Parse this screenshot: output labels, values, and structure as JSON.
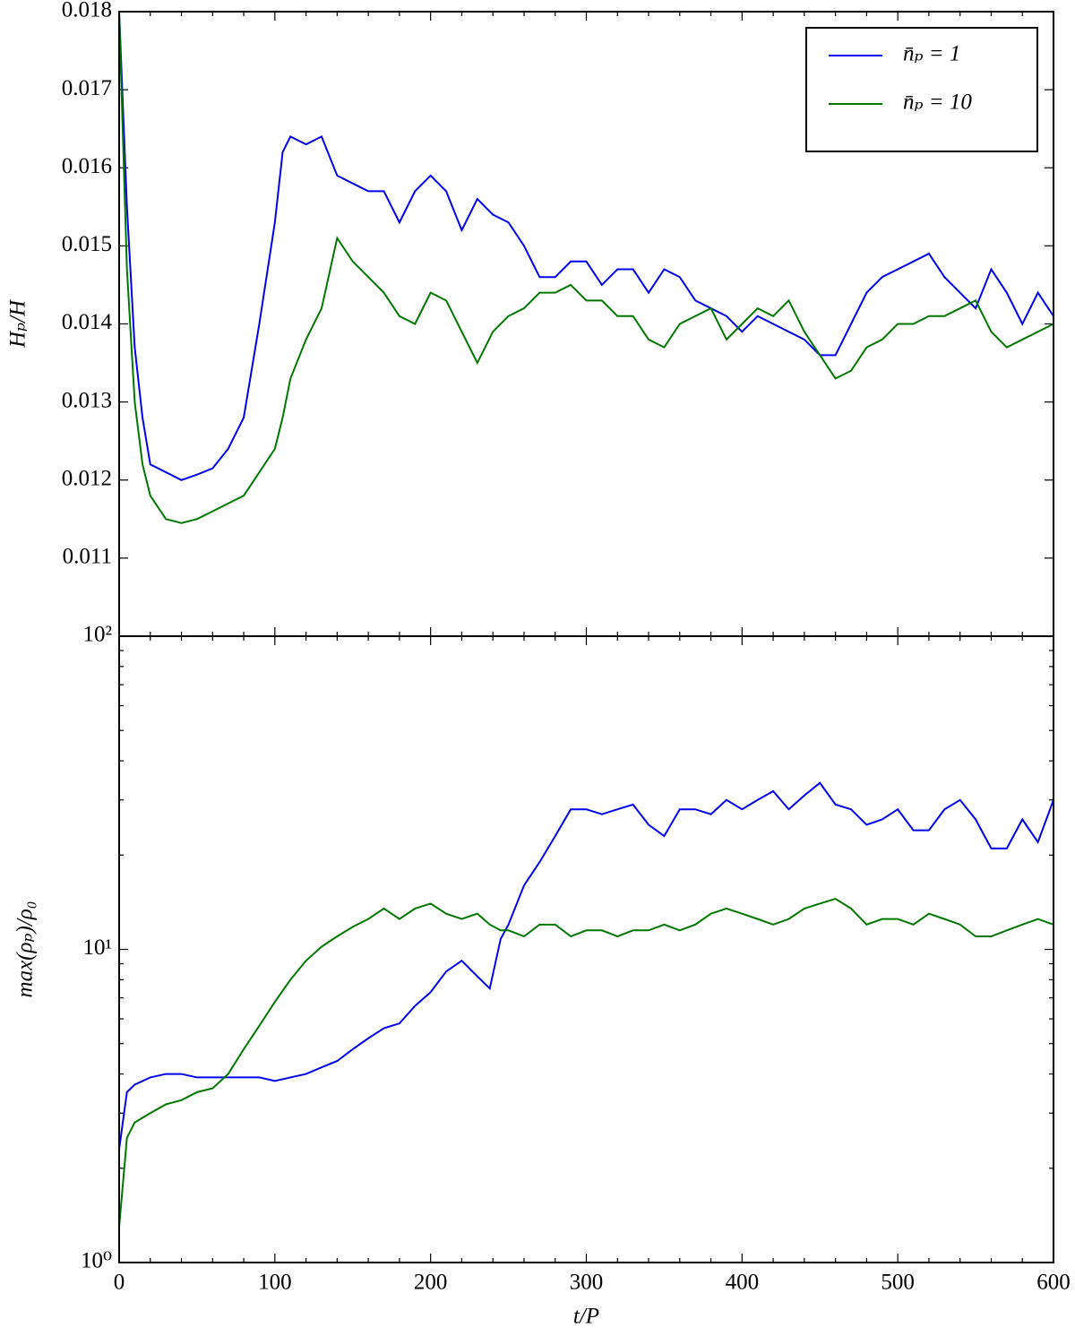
{
  "chart_data": [
    {
      "type": "line",
      "ylabel": "Hₚ/H",
      "legend": "upper right",
      "xlim": [
        0,
        600
      ],
      "ylim": [
        0.01,
        0.018
      ],
      "yticks": [
        0.011,
        0.012,
        0.013,
        0.014,
        0.015,
        0.016,
        0.017,
        0.018
      ],
      "x": [
        0,
        5,
        10,
        15,
        20,
        30,
        40,
        50,
        60,
        70,
        80,
        90,
        100,
        105,
        110,
        120,
        130,
        140,
        150,
        160,
        170,
        180,
        190,
        200,
        210,
        220,
        230,
        240,
        250,
        260,
        270,
        280,
        290,
        300,
        310,
        320,
        330,
        340,
        350,
        360,
        370,
        380,
        390,
        400,
        410,
        420,
        430,
        440,
        450,
        460,
        470,
        480,
        490,
        500,
        510,
        520,
        530,
        540,
        550,
        560,
        570,
        580,
        590,
        600
      ],
      "series": [
        {
          "name": "n̄ₚ = 1",
          "color": "#0000ee",
          "values": [
            0.018,
            0.0155,
            0.0137,
            0.0128,
            0.0122,
            0.0121,
            0.012,
            0.01207,
            0.01215,
            0.0124,
            0.0128,
            0.014,
            0.0153,
            0.0162,
            0.0164,
            0.0163,
            0.0164,
            0.0159,
            0.0158,
            0.0157,
            0.0157,
            0.0153,
            0.0157,
            0.0159,
            0.0157,
            0.0152,
            0.0156,
            0.0154,
            0.0153,
            0.015,
            0.0146,
            0.0146,
            0.0148,
            0.0148,
            0.0145,
            0.0147,
            0.0147,
            0.0144,
            0.0147,
            0.0146,
            0.0143,
            0.0142,
            0.0141,
            0.0139,
            0.0141,
            0.014,
            0.0139,
            0.0138,
            0.0136,
            0.0136,
            0.014,
            0.0144,
            0.0146,
            0.0147,
            0.0148,
            0.0149,
            0.0146,
            0.0144,
            0.0142,
            0.0147,
            0.0144,
            0.014,
            0.0144,
            0.0141
          ]
        },
        {
          "name": "n̄ₚ = 10",
          "color": "#007700",
          "values": [
            0.018,
            0.0147,
            0.013,
            0.0122,
            0.0118,
            0.0115,
            0.01145,
            0.0115,
            0.0116,
            0.0117,
            0.0118,
            0.0121,
            0.0124,
            0.0128,
            0.0133,
            0.0138,
            0.0142,
            0.0151,
            0.0148,
            0.0146,
            0.0144,
            0.0141,
            0.014,
            0.0144,
            0.0143,
            0.0139,
            0.0135,
            0.0139,
            0.0141,
            0.0142,
            0.0144,
            0.0144,
            0.0145,
            0.0143,
            0.0143,
            0.0141,
            0.0141,
            0.0138,
            0.0137,
            0.014,
            0.0141,
            0.0142,
            0.0138,
            0.014,
            0.0142,
            0.0141,
            0.0143,
            0.0139,
            0.0136,
            0.0133,
            0.0134,
            0.0137,
            0.0138,
            0.014,
            0.014,
            0.0141,
            0.0141,
            0.0142,
            0.0143,
            0.0139,
            0.0137,
            0.0138,
            0.0139,
            0.014
          ]
        }
      ]
    },
    {
      "type": "line",
      "ylabel": "max(ρₚ)/ρ₀",
      "xlabel": "t/P",
      "log": true,
      "xlim": [
        0,
        600
      ],
      "ylim": [
        1,
        100
      ],
      "xticks": [
        0,
        100,
        200,
        300,
        400,
        500,
        600
      ],
      "yticks": [
        {
          "value": 1,
          "label": "10⁰"
        },
        {
          "value": 10,
          "label": "10¹"
        },
        {
          "value": 100,
          "label": "10²"
        }
      ],
      "x": [
        0,
        5,
        10,
        20,
        30,
        40,
        50,
        60,
        70,
        80,
        90,
        100,
        110,
        120,
        130,
        140,
        150,
        160,
        170,
        180,
        190,
        200,
        210,
        220,
        230,
        238,
        245,
        250,
        260,
        270,
        280,
        290,
        300,
        310,
        320,
        330,
        340,
        350,
        360,
        370,
        380,
        390,
        400,
        410,
        420,
        430,
        440,
        450,
        460,
        470,
        480,
        490,
        500,
        510,
        520,
        530,
        540,
        550,
        560,
        570,
        580,
        590,
        600
      ],
      "series": [
        {
          "color": "#0000ee",
          "values": [
            2.3,
            3.5,
            3.7,
            3.9,
            4.0,
            4.0,
            3.9,
            3.9,
            3.9,
            3.9,
            3.9,
            3.8,
            3.9,
            4.0,
            4.2,
            4.4,
            4.8,
            5.2,
            5.6,
            5.8,
            6.6,
            7.3,
            8.5,
            9.2,
            8.2,
            7.5,
            10.8,
            12,
            16,
            19,
            23,
            28,
            28,
            27,
            28,
            29,
            25,
            23,
            28,
            28,
            27,
            30,
            28,
            30,
            32,
            28,
            31,
            34,
            29,
            28,
            25,
            26,
            28,
            24,
            24,
            28,
            30,
            26,
            21,
            21,
            26,
            22,
            30
          ]
        },
        {
          "color": "#007700",
          "values": [
            1.3,
            2.5,
            2.8,
            3.0,
            3.2,
            3.3,
            3.5,
            3.6,
            4.0,
            4.8,
            5.7,
            6.8,
            8.0,
            9.2,
            10.2,
            11.0,
            11.8,
            12.5,
            13.5,
            12.5,
            13.5,
            14,
            13,
            12.5,
            13,
            12,
            11.5,
            11.5,
            11.0,
            12,
            12,
            11,
            11.5,
            11.5,
            11,
            11.5,
            11.5,
            12,
            11.5,
            12,
            13,
            13.5,
            13,
            12.5,
            12,
            12.5,
            13.5,
            14,
            14.5,
            13.5,
            12,
            12.5,
            12.5,
            12,
            13,
            12.5,
            12,
            11,
            11,
            11.5,
            12,
            12.5,
            12
          ]
        }
      ]
    }
  ]
}
